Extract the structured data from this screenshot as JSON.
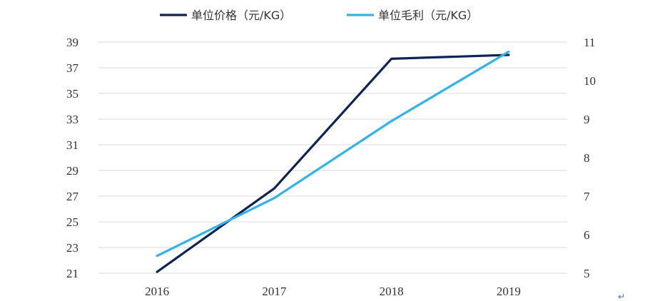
{
  "chart_data": {
    "type": "line",
    "categories": [
      "2016",
      "2017",
      "2018",
      "2019"
    ],
    "series": [
      {
        "name": "单位价格（元/KG）",
        "axis": "left",
        "color": "#0f2454",
        "values": [
          21.1,
          27.6,
          37.7,
          38.0
        ]
      },
      {
        "name": "单位毛利（元/KG）",
        "axis": "right",
        "color": "#2fb3e8",
        "values": [
          5.45,
          6.95,
          8.95,
          10.75
        ]
      }
    ],
    "y_left": {
      "ylim": [
        21,
        39
      ],
      "ticks": [
        "21",
        "23",
        "25",
        "27",
        "29",
        "31",
        "33",
        "35",
        "37",
        "39"
      ]
    },
    "y_right": {
      "ylim": [
        5,
        11
      ],
      "ticks": [
        "5",
        "6",
        "7",
        "8",
        "9",
        "10",
        "11"
      ]
    },
    "grid": true,
    "legend_position": "top-center"
  },
  "footer_mark": "↵"
}
